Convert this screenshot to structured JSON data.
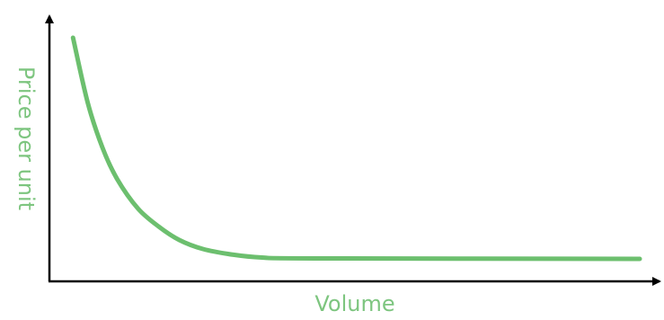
{
  "chart_data": {
    "type": "line",
    "title": "",
    "xlabel": "Volume",
    "ylabel": "Price per unit",
    "x_ticks": false,
    "y_ticks": false,
    "grid": false,
    "legend": "none",
    "colors": {
      "axis": "#000000",
      "curve": "#6cbf6e",
      "label": "#7dc57f"
    },
    "xlim": [
      0,
      100
    ],
    "ylim": [
      0,
      100
    ],
    "series": [
      {
        "points": [
          {
            "x": 4,
            "y": 100
          },
          {
            "x": 6.5,
            "y": 71
          },
          {
            "x": 9,
            "y": 51
          },
          {
            "x": 11.5,
            "y": 37
          },
          {
            "x": 15,
            "y": 24
          },
          {
            "x": 18.5,
            "y": 16
          },
          {
            "x": 22,
            "y": 10
          },
          {
            "x": 26,
            "y": 6
          },
          {
            "x": 31,
            "y": 3.5
          },
          {
            "x": 36,
            "y": 2.2
          },
          {
            "x": 45,
            "y": 1.8
          },
          {
            "x": 100,
            "y": 1.6
          }
        ]
      }
    ]
  }
}
